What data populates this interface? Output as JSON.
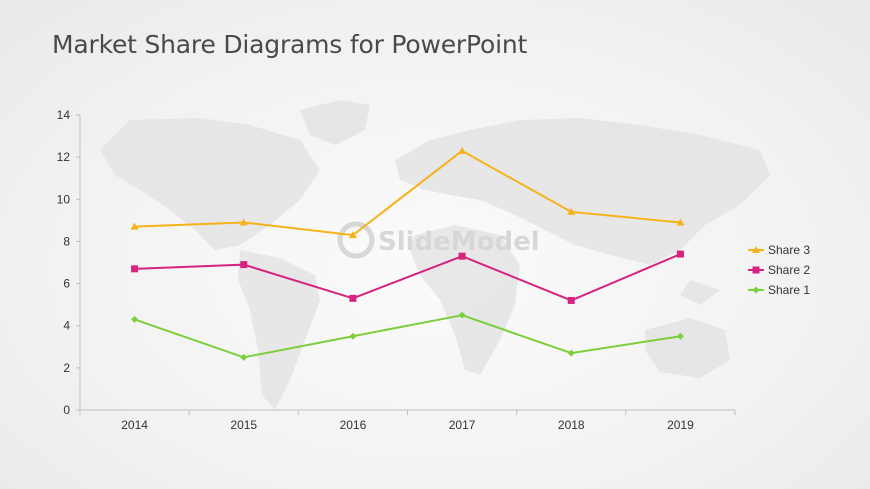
{
  "page": {
    "title": "Market Share Diagrams for PowerPoint"
  },
  "chart_data": {
    "type": "line",
    "title": "",
    "xlabel": "",
    "ylabel": "",
    "categories": [
      "2014",
      "2015",
      "2016",
      "2017",
      "2018",
      "2019"
    ],
    "ylim": [
      0,
      14
    ],
    "yticks": [
      0,
      2,
      4,
      6,
      8,
      10,
      12,
      14
    ],
    "grid": false,
    "legend_position": "right",
    "series": [
      {
        "name": "Share 3",
        "values": [
          8.7,
          8.9,
          8.3,
          12.3,
          9.4,
          8.9
        ],
        "color": "#f5b31b",
        "marker": "triangle"
      },
      {
        "name": "Share 2",
        "values": [
          6.7,
          6.9,
          5.3,
          7.3,
          5.2,
          7.4
        ],
        "color": "#d6237f",
        "marker": "square"
      },
      {
        "name": "Share 1",
        "values": [
          4.3,
          2.5,
          3.5,
          4.5,
          2.7,
          3.5
        ],
        "color": "#7ccf3c",
        "marker": "diamond"
      }
    ]
  }
}
